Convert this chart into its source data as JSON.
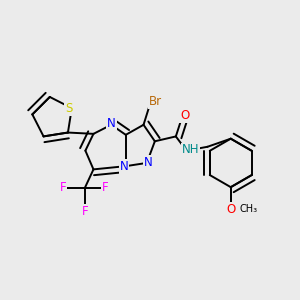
{
  "bg_color": "#ebebeb",
  "bond_color": "#000000",
  "atom_colors": {
    "Br": "#b8690a",
    "N": "#0000FF",
    "O": "#FF0000",
    "S": "#cccc00",
    "F": "#FF00FF",
    "H": "#008B8B",
    "C": "#000000"
  },
  "font_size": 8.5,
  "bond_width": 1.4
}
